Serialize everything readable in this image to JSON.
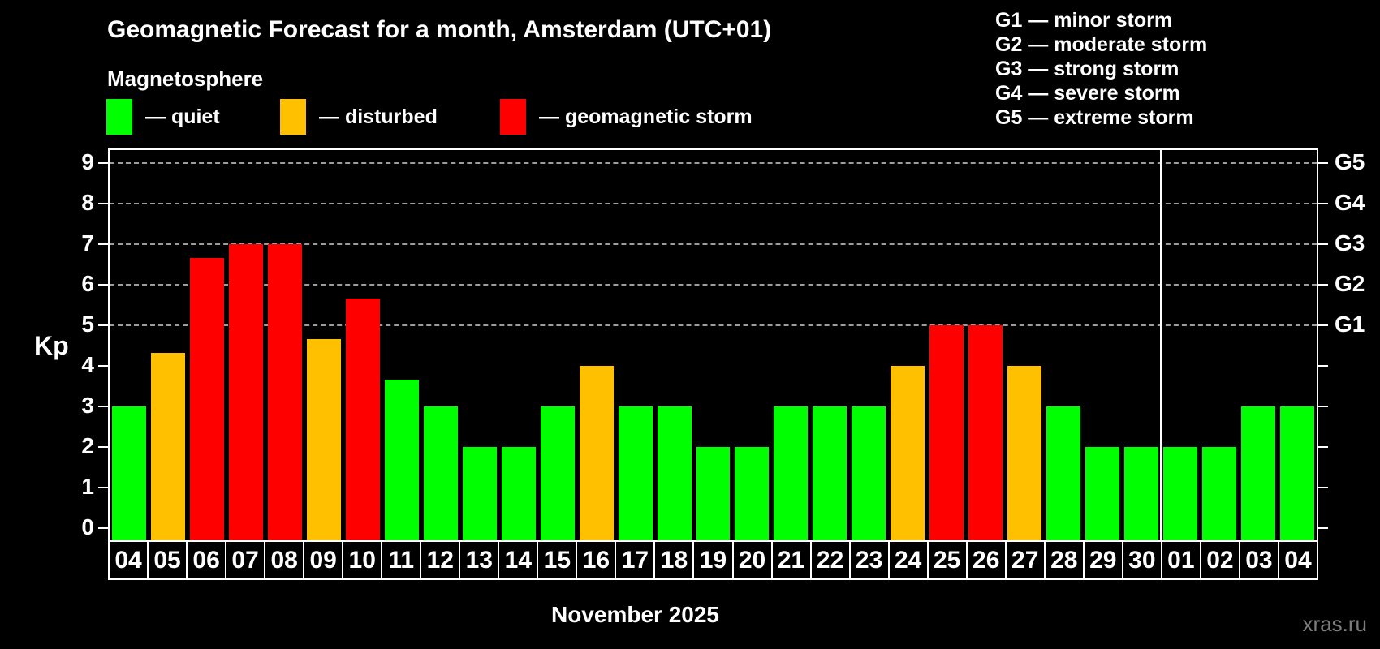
{
  "header": {
    "title": "Geomagnetic Forecast for a month, Amsterdam (UTC+01)",
    "subtitle": "Magnetosphere"
  },
  "legend": {
    "items": [
      {
        "status": "quiet",
        "label": "— quiet"
      },
      {
        "status": "disturbed",
        "label": "— disturbed"
      },
      {
        "status": "storm",
        "label": "— geomagnetic storm"
      }
    ]
  },
  "storm_scale": {
    "items": [
      "G1 — minor storm",
      "G2 — moderate storm",
      "G3 — strong storm",
      "G4 — severe storm",
      "G5 — extreme storm"
    ]
  },
  "chart_data": {
    "type": "bar",
    "title": "Geomagnetic Forecast for a month, Amsterdam (UTC+01)",
    "subtitle": "Magnetosphere",
    "xlabel": "November 2025",
    "ylabel": "Kp",
    "ylim": [
      -0.35,
      9.35
    ],
    "yticks": [
      0,
      1,
      2,
      3,
      4,
      5,
      6,
      7,
      8,
      9
    ],
    "gridlines": [
      5,
      6,
      7,
      8,
      9
    ],
    "grid_style": "dashed",
    "legend_position": "top",
    "categories": [
      "04",
      "05",
      "06",
      "07",
      "08",
      "09",
      "10",
      "11",
      "12",
      "13",
      "14",
      "15",
      "16",
      "17",
      "18",
      "19",
      "20",
      "21",
      "22",
      "23",
      "24",
      "25",
      "26",
      "27",
      "28",
      "29",
      "30",
      "01",
      "02",
      "03",
      "04"
    ],
    "values": [
      3,
      4.33,
      6.67,
      7,
      7,
      4.67,
      5.67,
      3.67,
      3,
      2,
      2,
      3,
      4,
      3,
      3,
      2,
      2,
      3,
      3,
      3,
      4,
      5,
      5,
      4,
      3,
      2,
      2,
      2,
      2,
      3,
      3
    ],
    "statuses": [
      "quiet",
      "disturbed",
      "storm",
      "storm",
      "storm",
      "disturbed",
      "storm",
      "quiet",
      "quiet",
      "quiet",
      "quiet",
      "quiet",
      "disturbed",
      "quiet",
      "quiet",
      "quiet",
      "quiet",
      "quiet",
      "quiet",
      "quiet",
      "disturbed",
      "storm",
      "storm",
      "disturbed",
      "quiet",
      "quiet",
      "quiet",
      "quiet",
      "quiet",
      "quiet",
      "quiet"
    ],
    "status_colors": {
      "quiet": "#00ff00",
      "disturbed": "#ffc000",
      "storm": "#ff0000"
    },
    "right_axis_labels": [
      {
        "kp": 5,
        "text": "G1"
      },
      {
        "kp": 6,
        "text": "G2"
      },
      {
        "kp": 7,
        "text": "G3"
      },
      {
        "kp": 8,
        "text": "G4"
      },
      {
        "kp": 9,
        "text": "G5"
      }
    ],
    "month_separator_after_index": 26
  },
  "footer": {
    "month_label": "November 2025",
    "watermark": "xras.ru"
  },
  "colors": {
    "background": "#000000",
    "axis": "#ffffff",
    "grid": "#9c9c9c",
    "quiet": "#00ff00",
    "disturbed": "#ffc000",
    "storm": "#ff0000",
    "watermark": "#7c7c7c"
  }
}
